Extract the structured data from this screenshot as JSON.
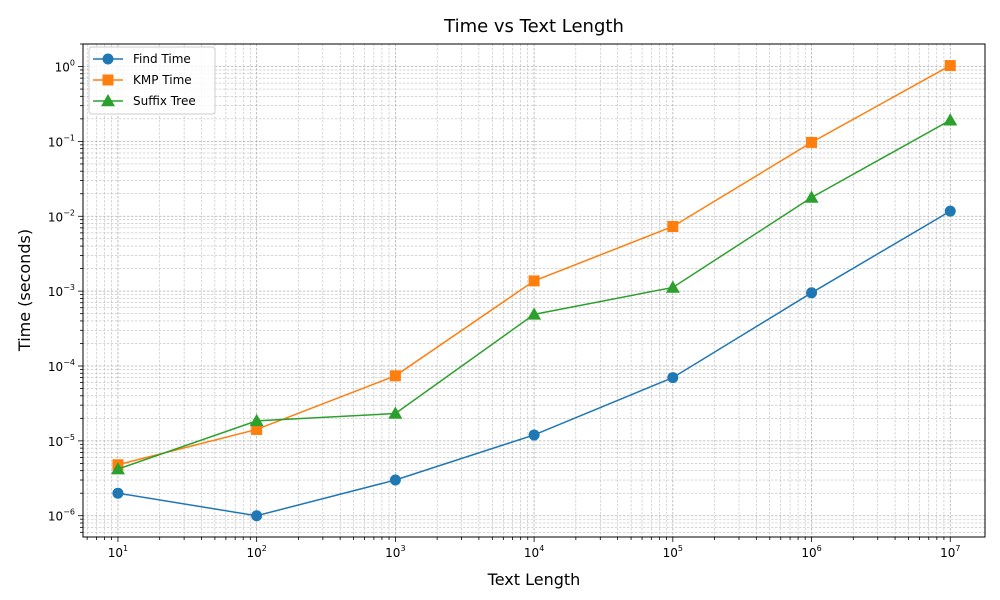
{
  "chart_data": {
    "type": "line",
    "title": "Time vs Text Length",
    "xlabel": "Text Length",
    "ylabel": "Time (seconds)",
    "xscale": "log",
    "yscale": "log",
    "x": [
      10,
      100,
      1000,
      10000,
      100000,
      1000000,
      10000000
    ],
    "xlim": [
      5.6,
      17800000
    ],
    "ylim": [
      5.2e-07,
      2.0
    ],
    "x_ticks": [
      {
        "base": "10",
        "exp": "1"
      },
      {
        "base": "10",
        "exp": "2"
      },
      {
        "base": "10",
        "exp": "3"
      },
      {
        "base": "10",
        "exp": "4"
      },
      {
        "base": "10",
        "exp": "5"
      },
      {
        "base": "10",
        "exp": "6"
      },
      {
        "base": "10",
        "exp": "7"
      }
    ],
    "y_ticks": [
      {
        "base": "10",
        "exp": "−6"
      },
      {
        "base": "10",
        "exp": "−5"
      },
      {
        "base": "10",
        "exp": "−4"
      },
      {
        "base": "10",
        "exp": "−3"
      },
      {
        "base": "10",
        "exp": "−2"
      },
      {
        "base": "10",
        "exp": "−1"
      },
      {
        "base": "10",
        "exp": "0"
      }
    ],
    "grid": true,
    "legend_position": "top-left",
    "series": [
      {
        "name": "Find Time",
        "color": "#1f77b4",
        "marker": "circle",
        "values": [
          2e-06,
          1e-06,
          3e-06,
          1.2e-05,
          7e-05,
          0.00095,
          0.0117
        ]
      },
      {
        "name": "KMP Time",
        "color": "#ff7f0e",
        "marker": "square",
        "values": [
          4.8e-06,
          1.42e-05,
          7.4e-05,
          0.00137,
          0.0073,
          0.097,
          1.03
        ]
      },
      {
        "name": "Suffix Tree",
        "color": "#2ca02c",
        "marker": "triangle",
        "values": [
          4.2e-06,
          1.85e-05,
          2.32e-05,
          0.00049,
          0.00112,
          0.0178,
          0.192
        ]
      }
    ]
  }
}
